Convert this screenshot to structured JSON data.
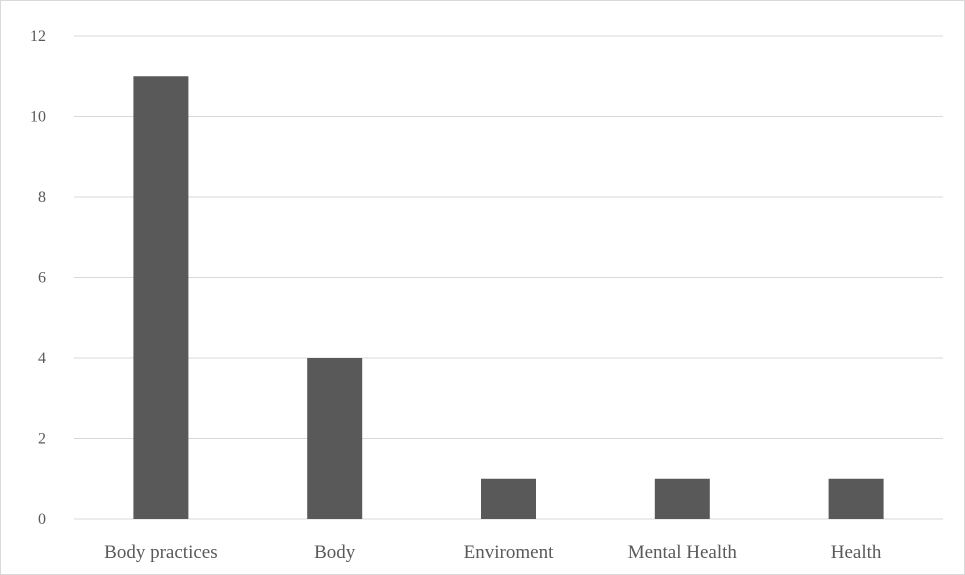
{
  "chart_data": {
    "type": "bar",
    "categories": [
      "Body practices",
      "Body",
      "Enviroment",
      "Mental Health",
      "Health"
    ],
    "values": [
      11,
      4,
      1,
      1,
      1
    ],
    "ylim": [
      0,
      12
    ],
    "yticks": [
      0,
      2,
      4,
      6,
      8,
      10,
      12
    ],
    "grid": true,
    "legend": "none",
    "bar_color": "#595959",
    "gridline_color": "#d9d9d9",
    "label_color": "#595959"
  }
}
